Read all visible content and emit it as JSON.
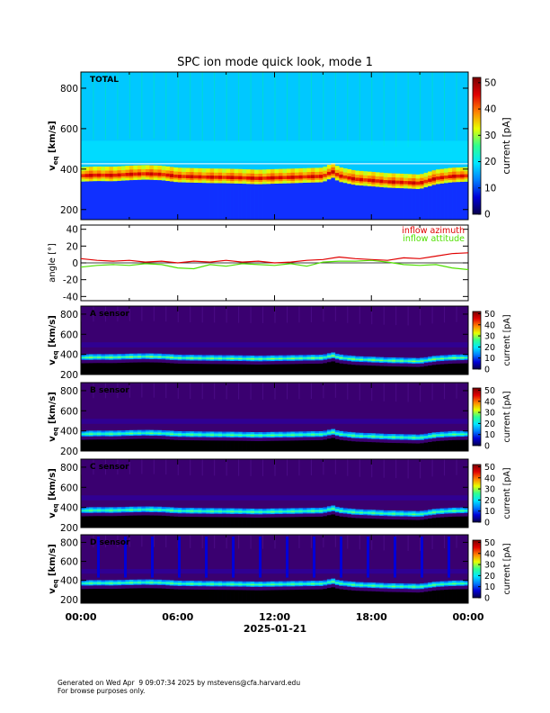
{
  "chart_data": {
    "type": "heatmap",
    "title": "SPC ion mode quick look, mode 1",
    "date_label": "2025-01-21",
    "x_ticks": [
      "00:00",
      "06:00",
      "12:00",
      "18:00",
      "00:00"
    ],
    "x_range_hours": [
      0,
      24
    ],
    "colorbar": {
      "label": "current [pA]",
      "ticks": [
        0,
        10,
        20,
        30,
        40,
        50
      ],
      "range": [
        0,
        52
      ],
      "colormap": [
        "#08004a",
        "#0000d8",
        "#0080ff",
        "#00e8ff",
        "#30ff90",
        "#e8ff00",
        "#ff8000",
        "#e00000",
        "#7a0000"
      ]
    },
    "panels": [
      {
        "label": "TOTAL",
        "ylabel_main": "v",
        "ylabel_sub": "eq",
        "ylabel_unit": " [km/s]",
        "ylim": [
          150,
          880
        ],
        "yticks": [
          200,
          400,
          600,
          800
        ],
        "background": "#00c8ff",
        "peak_current_pA": 45
      },
      {
        "label": "A sensor",
        "ylabel_main": "v",
        "ylabel_sub": "eq",
        "ylabel_unit": " [km/s]",
        "ylim": [
          200,
          880
        ],
        "yticks": [
          200,
          400,
          600,
          800
        ],
        "background": "#3a0070",
        "peak_current_pA": 28
      },
      {
        "label": "B sensor",
        "ylabel_main": "v",
        "ylabel_sub": "eq",
        "ylabel_unit": " [km/s]",
        "ylim": [
          200,
          880
        ],
        "yticks": [
          200,
          400,
          600,
          800
        ],
        "background": "#3a0070",
        "peak_current_pA": 26
      },
      {
        "label": "C sensor",
        "ylabel_main": "v",
        "ylabel_sub": "eq",
        "ylabel_unit": " [km/s]",
        "ylim": [
          200,
          880
        ],
        "yticks": [
          200,
          400,
          600,
          800
        ],
        "background": "#3a0070",
        "peak_current_pA": 26
      },
      {
        "label": "D sensor",
        "ylabel_main": "v",
        "ylabel_sub": "eq",
        "ylabel_unit": " [km/s]",
        "ylim": [
          160,
          880
        ],
        "yticks": [
          200,
          400,
          600,
          800
        ],
        "background": "#3a0070",
        "peak_current_pA": 26
      }
    ],
    "core_velocity_trace": {
      "x_hours": [
        0,
        1,
        2,
        3,
        4,
        5,
        6,
        7,
        8,
        9,
        10,
        11,
        12,
        13,
        14,
        15,
        15.6,
        16,
        17,
        18,
        19,
        20,
        21,
        22,
        23,
        24
      ],
      "v_kms": [
        365,
        368,
        367,
        372,
        375,
        372,
        362,
        360,
        358,
        357,
        355,
        352,
        355,
        357,
        360,
        362,
        385,
        365,
        348,
        342,
        335,
        332,
        328,
        352,
        362,
        365
      ]
    },
    "angle_panel": {
      "ylabel": "angle [°]",
      "ylim": [
        -45,
        45
      ],
      "yticks": [
        40,
        20,
        0,
        -20,
        -40
      ],
      "series": [
        {
          "name": "inflow azimuth",
          "color": "#e00000",
          "x_hours": [
            0,
            1,
            2,
            3,
            4,
            5,
            6,
            7,
            8,
            9,
            10,
            11,
            12,
            13,
            14,
            15,
            16,
            17,
            18,
            19,
            20,
            21,
            22,
            23,
            24
          ],
          "values": [
            5,
            3,
            2,
            3,
            1,
            2,
            0,
            2,
            1,
            3,
            1,
            2,
            0,
            1,
            3,
            4,
            7,
            5,
            4,
            3,
            6,
            5,
            8,
            11,
            12
          ]
        },
        {
          "name": "inflow attitude",
          "color": "#50e000",
          "x_hours": [
            0,
            1,
            2,
            3,
            4,
            5,
            6,
            7,
            8,
            9,
            10,
            11,
            12,
            13,
            14,
            15,
            16,
            17,
            18,
            19,
            20,
            21,
            22,
            23,
            24
          ],
          "values": [
            -5,
            -3,
            -2,
            -3,
            -1,
            -2,
            -6,
            -7,
            -2,
            -4,
            -1,
            -2,
            -3,
            -1,
            -4,
            1,
            2,
            2,
            3,
            1,
            -2,
            -3,
            -2,
            -6,
            -8
          ]
        }
      ]
    }
  },
  "footer": {
    "line1": "Generated on Wed Apr  9 09:07:34 2025 by mstevens@cfa.harvard.edu",
    "line2": "For browse purposes only."
  }
}
